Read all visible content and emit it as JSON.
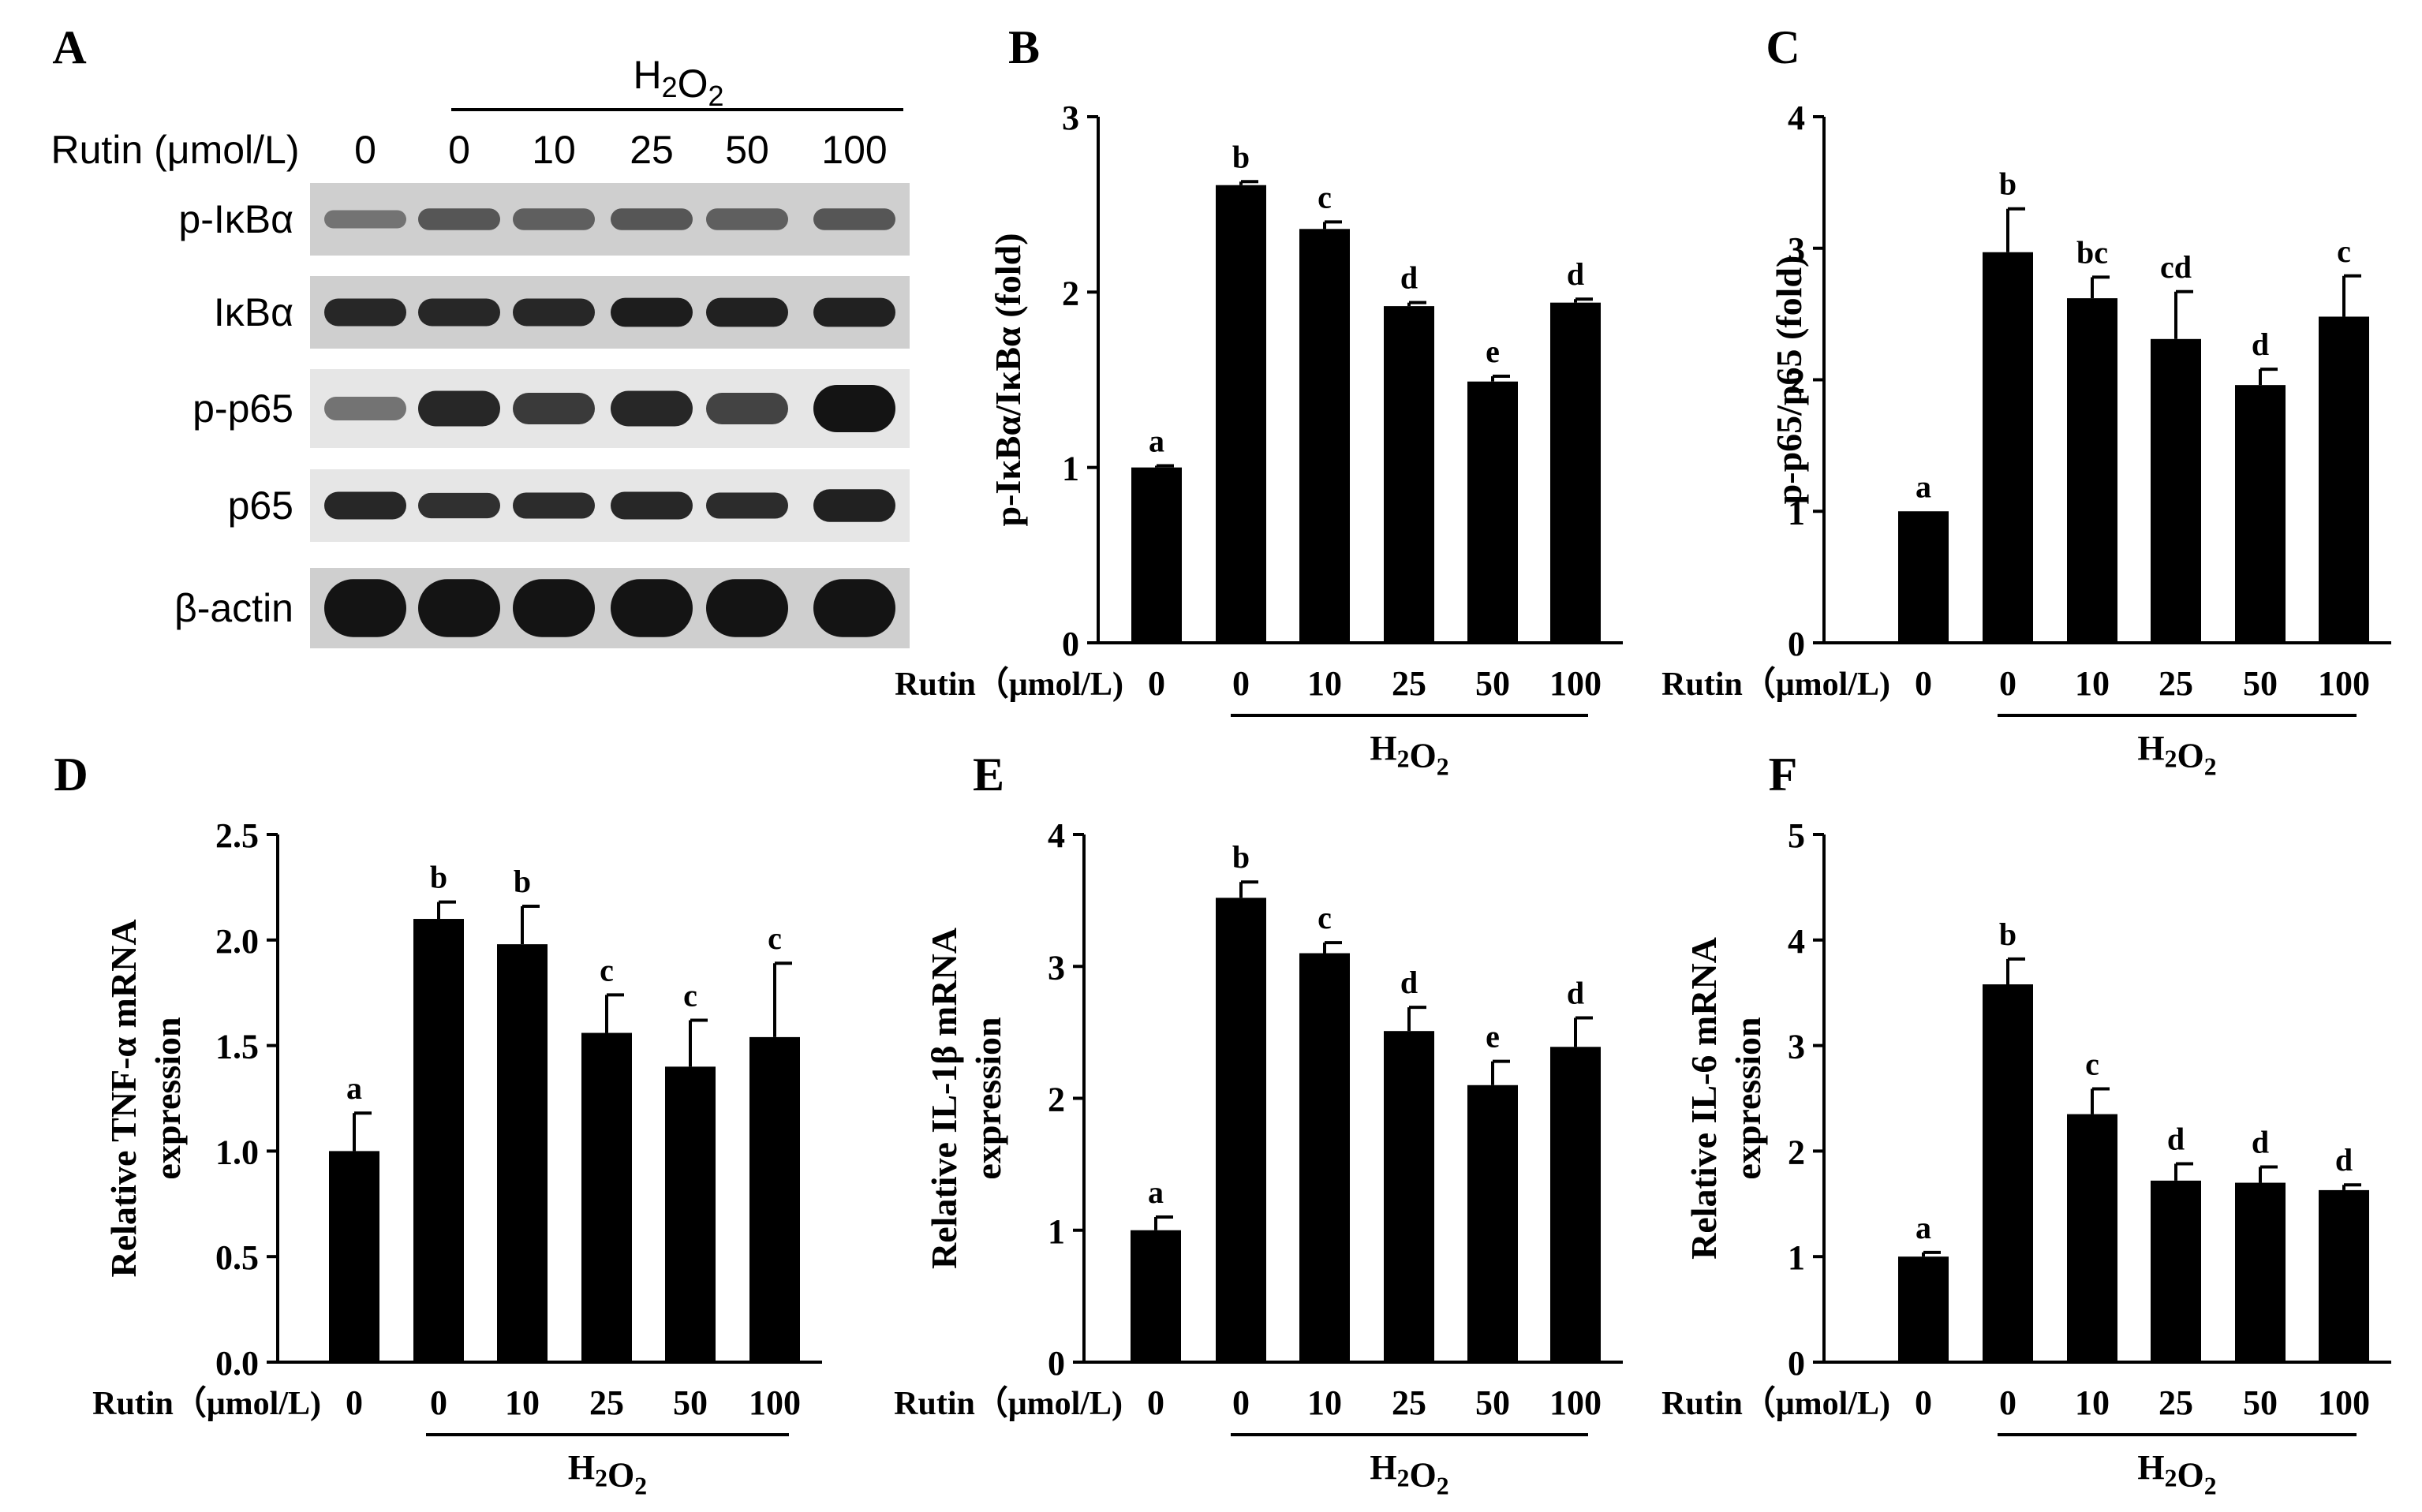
{
  "panel_a": {
    "label": "A",
    "treatment": {
      "base": "H",
      "sub": "2",
      "tail": "O",
      "sub2": "2"
    },
    "rutin_label": "Rutin (μmol/L)",
    "doses": [
      "0",
      "0",
      "10",
      "25",
      "50",
      "100"
    ],
    "blots": [
      {
        "name": "p-IκBα",
        "intensity": [
          0.45,
          0.6,
          0.55,
          0.6,
          0.55,
          0.6
        ],
        "thickness": [
          0.25,
          0.3,
          0.3,
          0.3,
          0.3,
          0.3
        ]
      },
      {
        "name": "IκBα",
        "intensity": [
          0.85,
          0.85,
          0.85,
          0.9,
          0.88,
          0.88
        ],
        "thickness": [
          0.38,
          0.38,
          0.38,
          0.4,
          0.4,
          0.4
        ]
      },
      {
        "name": "p-p65",
        "intensity": [
          0.45,
          0.85,
          0.75,
          0.85,
          0.7,
          0.95
        ],
        "thickness": [
          0.3,
          0.45,
          0.4,
          0.45,
          0.4,
          0.6
        ]
      },
      {
        "name": "p65",
        "intensity": [
          0.85,
          0.8,
          0.82,
          0.85,
          0.82,
          0.88
        ],
        "thickness": [
          0.38,
          0.35,
          0.36,
          0.38,
          0.36,
          0.45
        ]
      },
      {
        "name": "β-actin",
        "intensity": [
          0.95,
          0.95,
          0.95,
          0.95,
          0.95,
          0.95
        ],
        "thickness": [
          0.72,
          0.72,
          0.72,
          0.72,
          0.72,
          0.72
        ]
      }
    ]
  },
  "x_axis": {
    "rutin_label": "Rutin（μmol/L)",
    "doses": [
      "0",
      "0",
      "10",
      "25",
      "50",
      "100"
    ],
    "treatment": {
      "base": "H",
      "sub": "2",
      "tail": "O",
      "sub2": "2"
    }
  },
  "chart_data": [
    {
      "panel": "B",
      "type": "bar",
      "ylabel": "p-IκBα/IκBα (fold)",
      "ylabel_lines": [
        "p-IκBα/IκBα (fold)"
      ],
      "ylim": [
        0,
        3
      ],
      "yticks": [
        "0",
        "1",
        "2",
        "3"
      ],
      "categories": [
        "0",
        "0",
        "10",
        "25",
        "50",
        "100"
      ],
      "values": [
        1.0,
        2.61,
        2.36,
        1.92,
        1.49,
        1.94
      ],
      "errors": [
        0.01,
        0.02,
        0.04,
        0.02,
        0.03,
        0.02
      ],
      "letters": [
        "a",
        "b",
        "c",
        "d",
        "e",
        "d"
      ]
    },
    {
      "panel": "C",
      "type": "bar",
      "ylabel": "p-p65/p65 (fold)",
      "ylabel_lines": [
        "p-p65/p65 (fold)"
      ],
      "ylim": [
        0,
        4
      ],
      "yticks": [
        "0",
        "1",
        "2",
        "3",
        "4"
      ],
      "categories": [
        "0",
        "0",
        "10",
        "25",
        "50",
        "100"
      ],
      "values": [
        1.0,
        2.97,
        2.62,
        2.31,
        1.96,
        2.48
      ],
      "errors": [
        0.0,
        0.33,
        0.16,
        0.36,
        0.12,
        0.31
      ],
      "letters": [
        "a",
        "b",
        "bc",
        "cd",
        "d",
        "c"
      ]
    },
    {
      "panel": "D",
      "type": "bar",
      "ylabel": "Relative TNF-α mRNA expression",
      "ylabel_lines": [
        "Relative TNF-α mRNA",
        "expression"
      ],
      "ylim": [
        0,
        2.5
      ],
      "yticks": [
        "0.0",
        "0.5",
        "1.0",
        "1.5",
        "2.0",
        "2.5"
      ],
      "categories": [
        "0",
        "0",
        "10",
        "25",
        "50",
        "100"
      ],
      "values": [
        1.0,
        2.1,
        1.98,
        1.56,
        1.4,
        1.54
      ],
      "errors": [
        0.18,
        0.08,
        0.18,
        0.18,
        0.22,
        0.35
      ],
      "letters": [
        "a",
        "b",
        "b",
        "c",
        "c",
        "c"
      ]
    },
    {
      "panel": "E",
      "type": "bar",
      "ylabel": "Relative IL-1β mRNA expression",
      "ylabel_lines": [
        "Relative IL-1β mRNA",
        "expression"
      ],
      "ylim": [
        0,
        4
      ],
      "yticks": [
        "0",
        "1",
        "2",
        "3",
        "4"
      ],
      "categories": [
        "0",
        "0",
        "10",
        "25",
        "50",
        "100"
      ],
      "values": [
        1.0,
        3.52,
        3.1,
        2.51,
        2.1,
        2.39
      ],
      "errors": [
        0.1,
        0.12,
        0.08,
        0.18,
        0.18,
        0.22
      ],
      "letters": [
        "a",
        "b",
        "c",
        "d",
        "e",
        "d"
      ]
    },
    {
      "panel": "F",
      "type": "bar",
      "ylabel": "Relative IL-6 mRNA expression",
      "ylabel_lines": [
        "Relative IL-6 mRNA",
        "expression"
      ],
      "ylim": [
        0,
        5
      ],
      "yticks": [
        "0",
        "1",
        "2",
        "3",
        "4",
        "5"
      ],
      "categories": [
        "0",
        "0",
        "10",
        "25",
        "50",
        "100"
      ],
      "values": [
        1.0,
        3.58,
        2.35,
        1.72,
        1.7,
        1.63
      ],
      "errors": [
        0.04,
        0.24,
        0.24,
        0.16,
        0.15,
        0.05
      ],
      "letters": [
        "a",
        "b",
        "c",
        "d",
        "d",
        "d"
      ]
    }
  ]
}
